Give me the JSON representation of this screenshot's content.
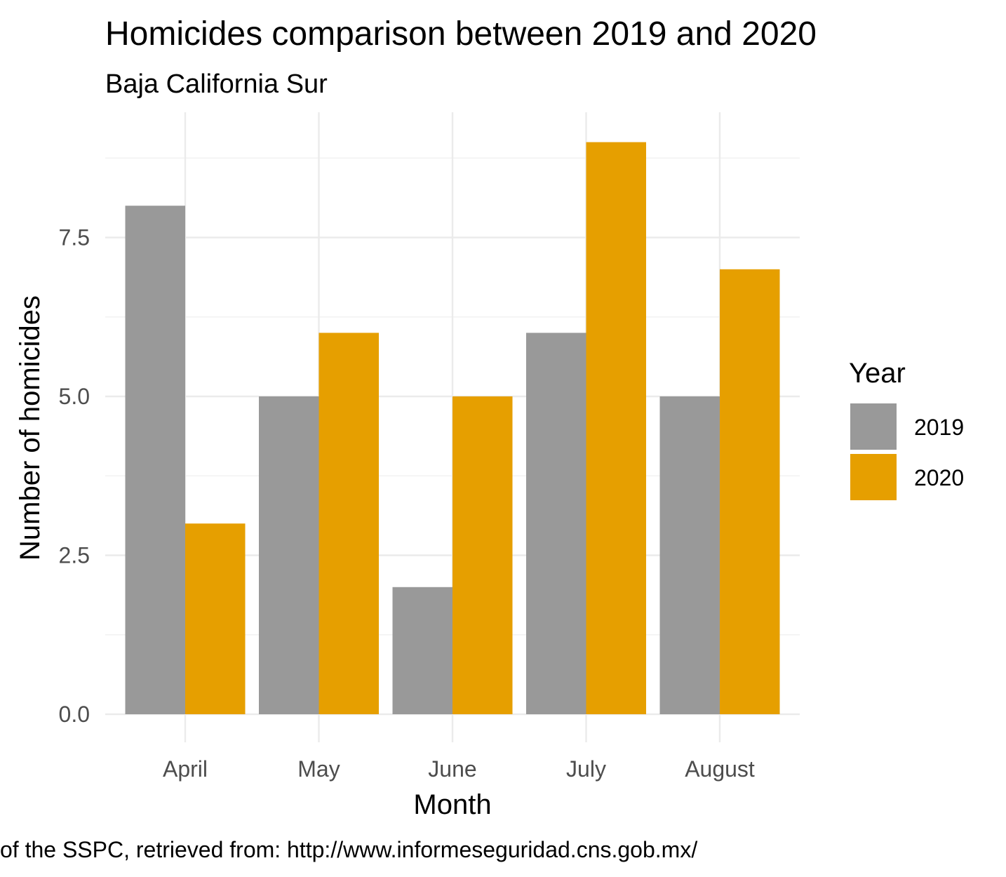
{
  "chart_data": {
    "type": "bar",
    "title": "Homicides comparison between 2019 and 2020",
    "subtitle": "Baja California Sur",
    "xlabel": "Month",
    "ylabel": "Number of homicides",
    "categories": [
      "April",
      "May",
      "June",
      "July",
      "August"
    ],
    "series": [
      {
        "name": "2019",
        "values": [
          8,
          5,
          2,
          6,
          5
        ],
        "color": "#999999"
      },
      {
        "name": "2020",
        "values": [
          3,
          6,
          5,
          9,
          7
        ],
        "color": "#E69F00"
      }
    ],
    "ylim": [
      0,
      9.5
    ],
    "yticks": [
      0,
      2.5,
      5,
      7.5
    ],
    "ytick_labels": [
      "0.0",
      "2.5",
      "5.0",
      "7.5"
    ],
    "grid": true,
    "legend": {
      "title": "Year",
      "position": "right"
    },
    "caption": "of the SSPC, retrieved from: http://www.informeseguridad.cns.gob.mx/"
  }
}
